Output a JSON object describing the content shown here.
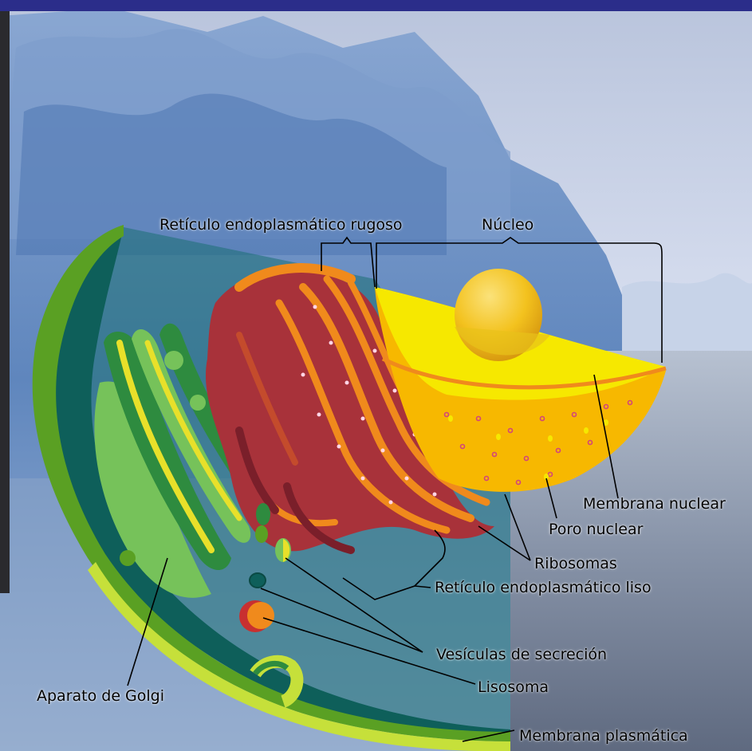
{
  "labels": {
    "rer": "Retículo endoplasmático rugoso",
    "nucleo": "Núcleo",
    "membrana_nuclear": "Membrana nuclear",
    "poro_nuclear": "Poro nuclear",
    "ribosomas": "Ribosomas",
    "rel": "Retículo endoplasmático liso",
    "vesiculas": "Vesículas de secreción",
    "lisosoma": "Lisosoma",
    "golgi": "Aparato de Golgi",
    "membrana_plasmatica": "Membrana plasmática"
  },
  "colors": {
    "frame_top": "#2b2d8a",
    "sky": "#c9d2e6",
    "ice": "#6f8fbf",
    "sea": "#9aa6b8",
    "cytoplasm": "#0e5f5a",
    "membrane": "#c6e03a",
    "membrane_dark": "#5aa023",
    "nucleus": "#f6e800",
    "nucleoplasm": "#f7b800",
    "nucleolus": "#f3c21e",
    "er_rough": "#a8323a",
    "er_rough_edge": "#f08a1c",
    "golgi_light": "#76c25a",
    "golgi_dark": "#2e8b3f",
    "golgi_yellow": "#e8e02a",
    "lysosome": "#f08a1c",
    "lysosome_edge": "#c83030"
  }
}
